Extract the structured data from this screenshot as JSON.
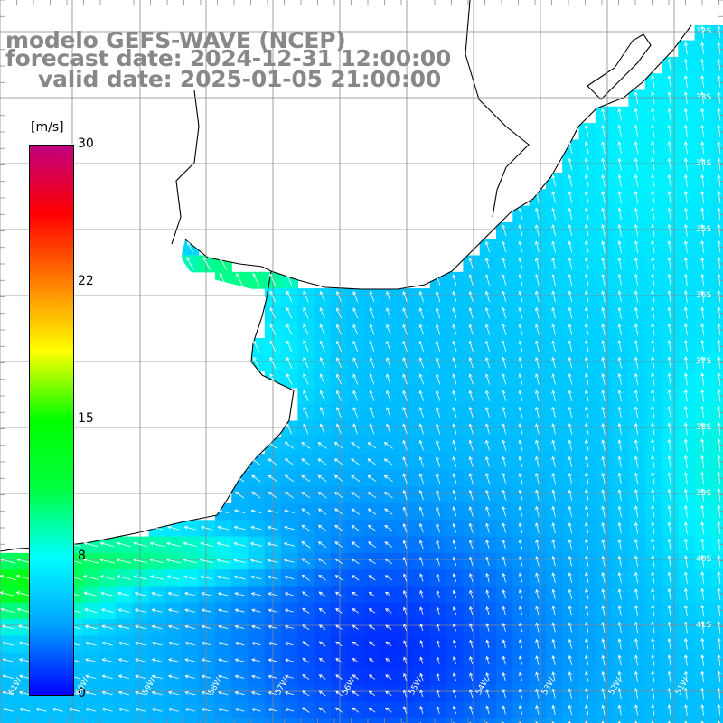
{
  "header": {
    "line1": "modelo GEFS-WAVE (NCEP)",
    "line2": "forecast date: 2024-12-31 12:00:00",
    "line3": "valid date: 2025-01-05 21:00:00"
  },
  "colorbar": {
    "unit_label": "[m/s]",
    "ticks": [
      "30",
      "22",
      "15",
      "8",
      "0"
    ],
    "tick_values": [
      30,
      22,
      15,
      8,
      0
    ],
    "min": 0,
    "max": 30,
    "colors": [
      "#0000ff",
      "#00a0ff",
      "#00ffff",
      "#00ff40",
      "#00ff00",
      "#ffff00",
      "#ff8000",
      "#ff0000",
      "#c00080"
    ]
  },
  "lat_labels": [
    "32S",
    "33S",
    "34S",
    "35S",
    "36S",
    "37S",
    "38S",
    "39S",
    "40S",
    "41S"
  ],
  "lon_labels": [
    "61W",
    "60W",
    "59W",
    "58W",
    "57W",
    "56W",
    "55W",
    "54W",
    "53W",
    "52W",
    "51W"
  ],
  "map": {
    "ocean_fill": "#ffffff",
    "coast_color": "#000000",
    "grid_color": "#888888",
    "arrow_color": "#ffffff",
    "land_color": "#ffffff"
  }
}
